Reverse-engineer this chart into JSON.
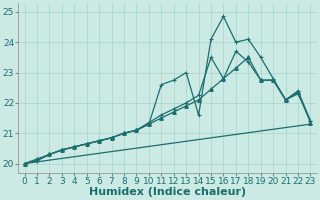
{
  "xlabel": "Humidex (Indice chaleur)",
  "ylabel": "",
  "bg_color": "#cceae4",
  "grid_color": "#a8d4cc",
  "line_color": "#1a6e6e",
  "xlim": [
    -0.5,
    23.5
  ],
  "ylim": [
    19.7,
    25.3
  ],
  "xticks": [
    0,
    1,
    2,
    3,
    4,
    5,
    6,
    7,
    8,
    9,
    10,
    11,
    12,
    13,
    14,
    15,
    16,
    17,
    18,
    19,
    20,
    21,
    22,
    23
  ],
  "yticks": [
    20,
    21,
    22,
    23,
    24,
    25
  ],
  "line1_x": [
    0,
    1,
    2,
    3,
    4,
    5,
    6,
    7,
    8,
    9,
    10,
    11,
    12,
    13,
    14,
    15,
    16,
    17,
    18,
    19,
    20,
    21,
    22,
    23
  ],
  "line1_y": [
    20.0,
    20.1,
    20.3,
    20.45,
    20.55,
    20.65,
    20.75,
    20.85,
    21.0,
    21.1,
    21.3,
    22.6,
    22.75,
    23.0,
    21.6,
    24.1,
    24.85,
    24.0,
    24.1,
    23.5,
    22.8,
    22.1,
    22.3,
    21.4
  ],
  "line2_x": [
    0,
    1,
    2,
    3,
    4,
    5,
    6,
    7,
    8,
    9,
    10,
    11,
    12,
    13,
    14,
    15,
    16,
    17,
    18,
    19,
    20,
    21,
    22,
    23
  ],
  "line2_y": [
    20.0,
    20.1,
    20.3,
    20.45,
    20.55,
    20.65,
    20.75,
    20.85,
    21.0,
    21.1,
    21.35,
    21.6,
    21.8,
    22.0,
    22.25,
    23.5,
    22.8,
    23.7,
    23.35,
    22.75,
    22.75,
    22.1,
    22.4,
    21.4
  ],
  "line3_x": [
    0,
    1,
    2,
    3,
    4,
    5,
    6,
    7,
    8,
    9,
    10,
    11,
    12,
    13,
    14,
    15,
    16,
    17,
    18,
    19,
    20,
    21,
    22,
    23
  ],
  "line3_y": [
    20.0,
    20.15,
    20.3,
    20.45,
    20.55,
    20.65,
    20.75,
    20.85,
    21.0,
    21.1,
    21.3,
    21.5,
    21.7,
    21.9,
    22.1,
    22.45,
    22.8,
    23.15,
    23.5,
    22.75,
    22.75,
    22.1,
    22.35,
    21.35
  ],
  "line4_x": [
    0,
    23
  ],
  "line4_y": [
    20.0,
    21.3
  ],
  "markersize": 2.5,
  "linewidth": 0.9,
  "xlabel_fontsize": 8,
  "tick_fontsize": 6.5,
  "tick_color": "#1a6e6e",
  "axis_color": "#888888"
}
